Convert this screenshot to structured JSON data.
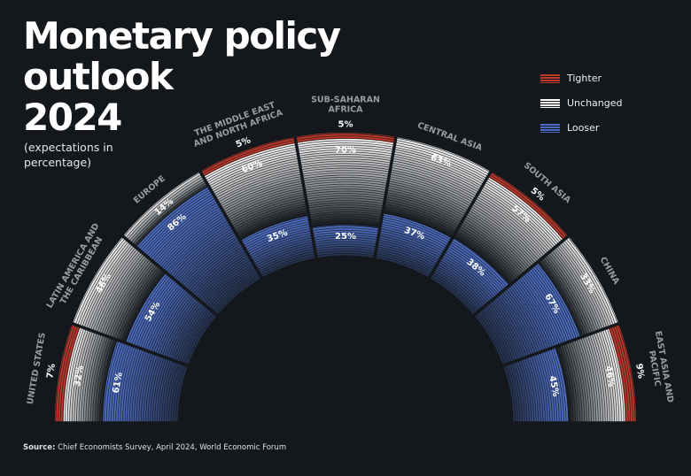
{
  "title": [
    "Monetary policy",
    "outlook",
    "2024"
  ],
  "subtitle": "(expectations in percentage)",
  "source": {
    "label": "Source:",
    "text": "Chief Economists Survey, April 2024, World Economic Forum"
  },
  "legend": [
    {
      "name": "Tighter",
      "color": "#c0392b"
    },
    {
      "name": "Unchanged",
      "color": "#ffffff"
    },
    {
      "name": "Looser",
      "color": "#4a6bc0"
    }
  ],
  "chart_data": {
    "type": "radial stacked bar",
    "series_order": [
      "Tighter",
      "Unchanged",
      "Looser"
    ],
    "unit": "%",
    "regions": [
      {
        "label": [
          "UNITED STATES"
        ],
        "Tighter": 7,
        "Unchanged": 32,
        "Looser": 61
      },
      {
        "label": [
          "LATIN AMERICA AND",
          "THE CARIBBEAN"
        ],
        "Tighter": 0,
        "Unchanged": 46,
        "Looser": 54
      },
      {
        "label": [
          "EUROPE"
        ],
        "Tighter": 0,
        "Unchanged": 14,
        "Looser": 86
      },
      {
        "label": [
          "THE MIDDLE EAST",
          "AND NORTH AFRICA"
        ],
        "Tighter": 5,
        "Unchanged": 60,
        "Looser": 35
      },
      {
        "label": [
          "SUB-SAHARAN",
          "AFRICA"
        ],
        "Tighter": 5,
        "Unchanged": 70,
        "Looser": 25
      },
      {
        "label": [
          "CENTRAL ASIA"
        ],
        "Tighter": 0,
        "Unchanged": 63,
        "Looser": 37
      },
      {
        "label": [
          "SOUTH ASIA"
        ],
        "Tighter": 5,
        "Unchanged": 57,
        "Looser": 38
      },
      {
        "label": [
          "CHINA"
        ],
        "Tighter": 0,
        "Unchanged": 33,
        "Looser": 67
      },
      {
        "label": [
          "EAST ASIA AND",
          "PACIFIC"
        ],
        "Tighter": 9,
        "Unchanged": 46,
        "Looser": 45
      }
    ]
  }
}
